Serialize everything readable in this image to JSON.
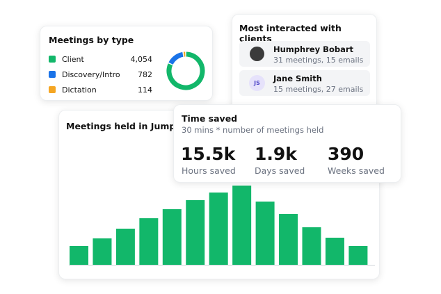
{
  "chart_data": [
    {
      "type": "donut",
      "title": "Meetings by type",
      "categories": [
        "Client",
        "Discovery/Intro",
        "Dictation"
      ],
      "values": [
        4054,
        782,
        114
      ],
      "value_labels": [
        "4,054",
        "782",
        "114"
      ],
      "colors": [
        "#12b76a",
        "#1a73e8",
        "#f5a623"
      ]
    },
    {
      "type": "bar",
      "title": "Meetings held in Jump",
      "values": [
        27,
        38,
        52,
        67,
        80,
        93,
        104,
        114,
        91,
        73,
        54,
        39,
        27
      ],
      "ylim": [
        0,
        120
      ],
      "color": "#12b76a"
    }
  ],
  "clients": {
    "title": "Most interacted with clients",
    "rows": [
      {
        "name": "Humphrey Bobart",
        "detail": "31 meetings, 15 emails"
      },
      {
        "initials": "JS",
        "name": "Jane Smith",
        "detail": "15 meetings, 27 emails"
      }
    ]
  },
  "time_saved": {
    "title": "Time saved",
    "subtitle": "30 mins * number of meetings held",
    "stats": [
      {
        "value": "15.5k",
        "label": "Hours saved"
      },
      {
        "value": "1.9k",
        "label": "Days saved"
      },
      {
        "value": "390",
        "label": "Weeks saved"
      }
    ]
  }
}
